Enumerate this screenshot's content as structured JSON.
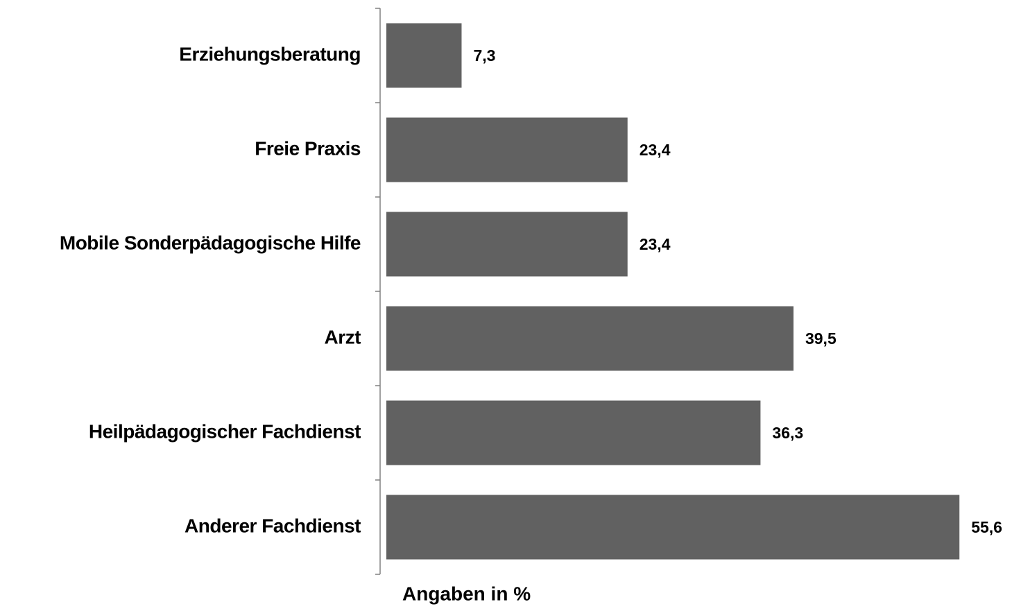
{
  "chart_data": {
    "type": "bar",
    "orientation": "horizontal",
    "categories": [
      "Erziehungsberatung",
      "Freie Praxis",
      "Mobile Sonderpädagogische Hilfe",
      "Arzt",
      "Heilpädagogischer Fachdienst",
      "Anderer Fachdienst"
    ],
    "values": [
      7.3,
      23.4,
      23.4,
      39.5,
      36.3,
      55.6
    ],
    "value_labels": [
      "7,3",
      "23,4",
      "23,4",
      "39,5",
      "36,3",
      "55,6"
    ],
    "color": "#616161",
    "xlabel": "Angaben in %"
  }
}
